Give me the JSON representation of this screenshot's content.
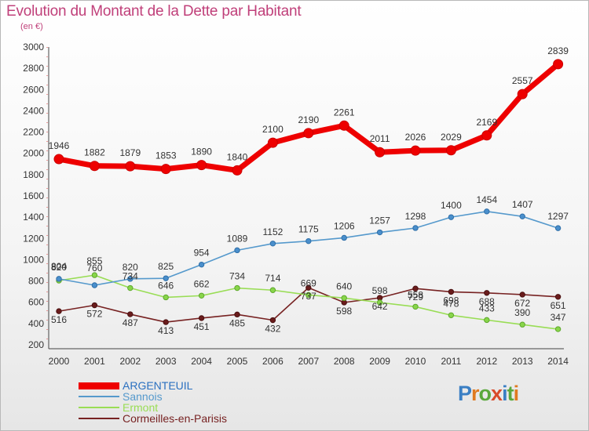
{
  "title": "Evolution du Montant de la Dette par Habitant",
  "subtitle": "(en €)",
  "brand": {
    "text": "Proxiti",
    "colors": [
      "#3a7fc4",
      "#e07a1f",
      "#5aa83c",
      "#d94a2a",
      "#3a7fc4",
      "#5aa83c",
      "#e07a1f"
    ]
  },
  "chart_data": {
    "type": "line",
    "title": "Evolution du Montant de la Dette par Habitant",
    "subtitle": "(en €)",
    "x": [
      "2000",
      "2001",
      "2002",
      "2003",
      "2004",
      "2005",
      "2006",
      "2007",
      "2008",
      "2009",
      "2010",
      "2011",
      "2012",
      "2013",
      "2014"
    ],
    "ylim": [
      200,
      3000
    ],
    "yticks": [
      200,
      400,
      600,
      800,
      1000,
      1200,
      1400,
      1600,
      1800,
      2000,
      2200,
      2400,
      2600,
      2800,
      3000
    ],
    "grid": false,
    "legend_position": "bottom-left",
    "series": [
      {
        "name": "ARGENTEUIL",
        "color": "#ee0000",
        "values": [
          1946,
          1882,
          1879,
          1853,
          1890,
          1840,
          2100,
          2190,
          2261,
          2011,
          2026,
          2029,
          2169,
          2557,
          2839
        ]
      },
      {
        "name": "Sannois",
        "color": "#5599cc",
        "values": [
          820,
          760,
          820,
          825,
          954,
          1089,
          1152,
          1175,
          1206,
          1257,
          1298,
          1400,
          1454,
          1407,
          1297
        ]
      },
      {
        "name": "Ermont",
        "color": "#99dd55",
        "values": [
          804,
          855,
          734,
          646,
          662,
          734,
          714,
          669,
          640,
          598,
          558,
          478,
          433,
          390,
          347
        ]
      },
      {
        "name": "Cormeilles-en-Parisis",
        "color": "#772222",
        "values": [
          516,
          572,
          487,
          413,
          451,
          485,
          432,
          737,
          598,
          642,
          729,
          698,
          688,
          672,
          651
        ]
      }
    ]
  }
}
